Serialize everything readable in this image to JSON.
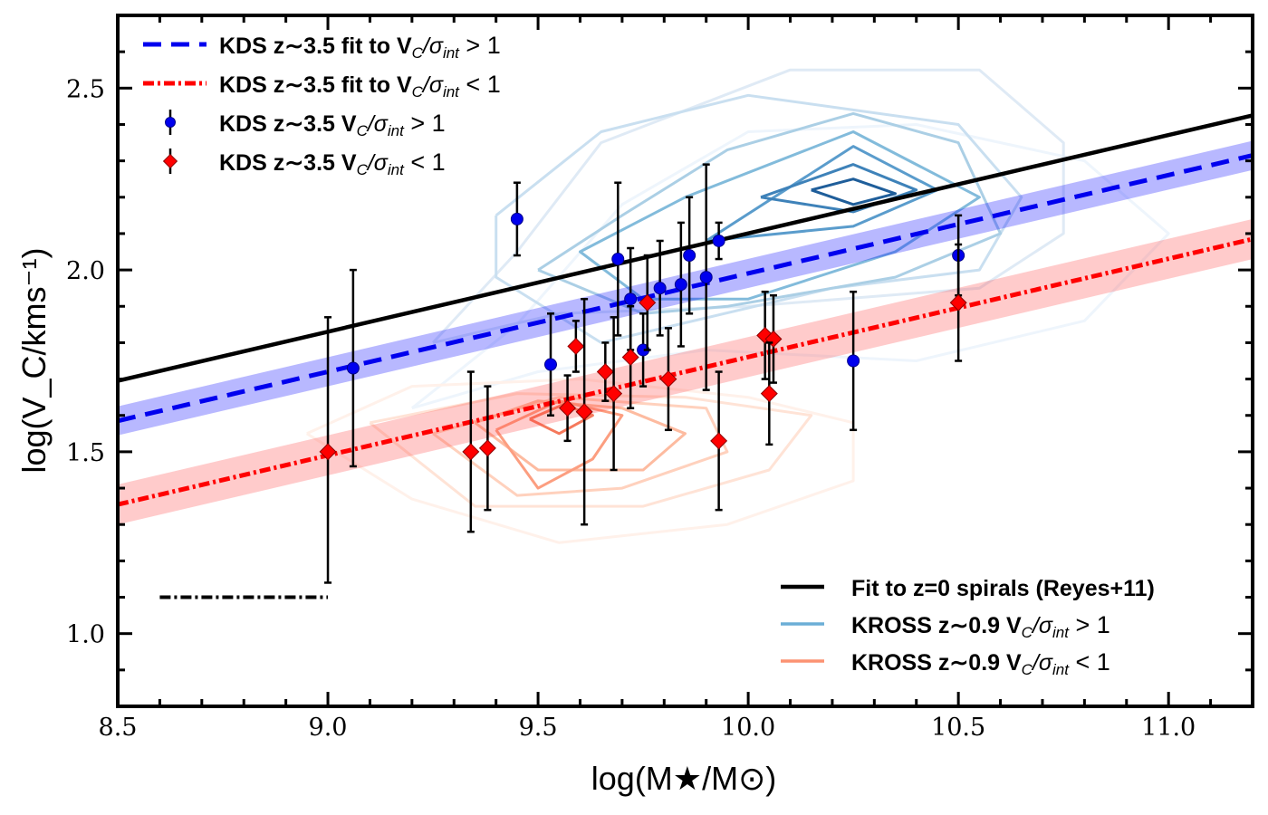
{
  "chart_data": {
    "type": "scatter",
    "xlabel": "log(M★/M⊙)",
    "ylabel": "log(V_C/kms⁻¹)",
    "xlim": [
      8.5,
      11.2
    ],
    "ylim": [
      0.8,
      2.7
    ],
    "x_ticks": [
      "8.5",
      "9.0",
      "9.5",
      "10.0",
      "10.5",
      "11.0"
    ],
    "y_ticks": [
      "1.0",
      "1.5",
      "2.0",
      "2.5"
    ],
    "series": [
      {
        "name": "KDS z~3.5 V_C/σ_int > 1",
        "legend_label": "KDS z∼3.5 V",
        "kind": "points",
        "marker": "circle",
        "color": "#0000ee",
        "points": [
          {
            "x": 9.06,
            "y": 1.73,
            "err": 0.27
          },
          {
            "x": 9.45,
            "y": 2.14,
            "err": 0.1
          },
          {
            "x": 9.53,
            "y": 1.74,
            "err": 0.14
          },
          {
            "x": 9.69,
            "y": 2.03,
            "err": 0.21
          },
          {
            "x": 9.72,
            "y": 1.92,
            "err": 0.14
          },
          {
            "x": 9.75,
            "y": 1.78,
            "err": 0.1
          },
          {
            "x": 9.79,
            "y": 1.95,
            "err": 0.13
          },
          {
            "x": 9.84,
            "y": 1.96,
            "err": 0.17
          },
          {
            "x": 9.86,
            "y": 2.04,
            "err": 0.16
          },
          {
            "x": 9.9,
            "y": 1.98,
            "err": 0.31
          },
          {
            "x": 9.93,
            "y": 2.08,
            "err": 0.05
          },
          {
            "x": 10.25,
            "y": 1.75,
            "err": 0.19
          },
          {
            "x": 10.5,
            "y": 2.04,
            "err": 0.11
          }
        ]
      },
      {
        "name": "KDS z~3.5 V_C/σ_int < 1",
        "legend_label": "KDS z∼3.5 V",
        "kind": "points",
        "marker": "diamond",
        "color": "#ff0000",
        "points": [
          {
            "x": 9.0,
            "y": 1.5,
            "err": 0.36,
            "err_up": 0.37
          },
          {
            "x": 9.34,
            "y": 1.5,
            "err": 0.22
          },
          {
            "x": 9.38,
            "y": 1.51,
            "err": 0.17
          },
          {
            "x": 9.57,
            "y": 1.62,
            "err": 0.09
          },
          {
            "x": 9.59,
            "y": 1.79,
            "err": 0.07
          },
          {
            "x": 9.61,
            "y": 1.61,
            "err": 0.31
          },
          {
            "x": 9.66,
            "y": 1.72,
            "err": 0.08
          },
          {
            "x": 9.68,
            "y": 1.66,
            "err": 0.21
          },
          {
            "x": 9.72,
            "y": 1.76,
            "err": 0.14
          },
          {
            "x": 9.76,
            "y": 1.91,
            "err": 0.13
          },
          {
            "x": 9.81,
            "y": 1.7,
            "err": 0.14
          },
          {
            "x": 9.93,
            "y": 1.53,
            "err": 0.19
          },
          {
            "x": 10.04,
            "y": 1.82,
            "err": 0.12
          },
          {
            "x": 10.06,
            "y": 1.81,
            "err": 0.12
          },
          {
            "x": 10.05,
            "y": 1.66,
            "err": 0.14
          },
          {
            "x": 10.5,
            "y": 1.91,
            "err": 0.16
          }
        ]
      },
      {
        "name": "KDS z~3.5 fit to V_C/σ_int > 1",
        "legend_label": "KDS z∼3.5 fit to V",
        "kind": "fit",
        "style": "dashed",
        "color": "#0000ee",
        "band_color": "#0000ff",
        "x": [
          8.5,
          11.2
        ],
        "y": [
          1.585,
          2.315
        ],
        "band_halfwidth": 0.04
      },
      {
        "name": "KDS z~3.5 fit to V_C/σ_int < 1",
        "legend_label": "KDS z∼3.5 fit to V",
        "kind": "fit",
        "style": "dashdot",
        "color": "#ff0000",
        "band_color": "#ff4444",
        "x": [
          8.5,
          11.2
        ],
        "y": [
          1.355,
          2.085
        ],
        "band_halfwidth": 0.055
      },
      {
        "name": "Fit to z=0 spirals (Reyes+11)",
        "legend_label": "Fit to z=0 spirals (Reyes+11)",
        "kind": "line",
        "style": "solid",
        "color": "#000000",
        "x": [
          8.5,
          11.2
        ],
        "y": [
          1.695,
          2.425
        ]
      },
      {
        "name": "KROSS z~0.9 V_C/σ_int > 1",
        "legend_label": "KROSS z∼0.9 V",
        "kind": "contours",
        "color": "#6baed6",
        "levels": [
          {
            "color": "#eef5fc",
            "points": [
              [
                9.2,
                1.62
              ],
              [
                9.45,
                1.85
              ],
              [
                9.7,
                2.18
              ],
              [
                10.0,
                2.38
              ],
              [
                10.4,
                2.4
              ],
              [
                10.8,
                2.3
              ],
              [
                11.0,
                2.1
              ],
              [
                10.8,
                1.86
              ],
              [
                10.4,
                1.75
              ],
              [
                9.9,
                1.78
              ],
              [
                9.5,
                1.72
              ],
              [
                9.2,
                1.62
              ]
            ]
          },
          {
            "color": "#dfeaf5",
            "points": [
              [
                9.25,
                1.8
              ],
              [
                9.45,
                2.05
              ],
              [
                9.65,
                2.35
              ],
              [
                10.1,
                2.55
              ],
              [
                10.55,
                2.55
              ],
              [
                10.75,
                2.35
              ],
              [
                10.75,
                2.1
              ],
              [
                10.55,
                1.95
              ],
              [
                10.0,
                1.9
              ],
              [
                9.55,
                1.88
              ],
              [
                9.25,
                1.8
              ]
            ]
          },
          {
            "color": "#c9dff0",
            "points": [
              [
                9.4,
                2.15
              ],
              [
                9.4,
                1.98
              ],
              [
                9.65,
                1.8
              ],
              [
                10.2,
                1.95
              ],
              [
                10.55,
                2.0
              ],
              [
                10.65,
                2.2
              ],
              [
                10.5,
                2.4
              ],
              [
                10.0,
                2.48
              ],
              [
                9.65,
                2.38
              ],
              [
                9.4,
                2.15
              ]
            ]
          },
          {
            "color": "#abcfe5",
            "points": [
              [
                9.5,
                2.0
              ],
              [
                9.7,
                2.15
              ],
              [
                9.95,
                2.33
              ],
              [
                10.25,
                2.43
              ],
              [
                10.5,
                2.35
              ],
              [
                10.6,
                2.1
              ],
              [
                10.35,
                1.98
              ],
              [
                9.95,
                1.9
              ],
              [
                9.75,
                1.88
              ],
              [
                9.5,
                2.0
              ]
            ]
          },
          {
            "color": "#82bbdb",
            "points": [
              [
                9.75,
                1.92
              ],
              [
                9.6,
                2.05
              ],
              [
                9.85,
                2.2
              ],
              [
                10.25,
                2.38
              ],
              [
                10.55,
                2.2
              ],
              [
                10.35,
                2.05
              ],
              [
                10.0,
                1.92
              ],
              [
                9.75,
                1.92
              ]
            ]
          },
          {
            "color": "#5a9ccc",
            "points": [
              [
                9.9,
                2.08
              ],
              [
                10.25,
                2.34
              ],
              [
                10.45,
                2.22
              ],
              [
                10.25,
                2.12
              ],
              [
                9.9,
                2.08
              ]
            ]
          },
          {
            "color": "#3e82b9",
            "points": [
              [
                10.03,
                2.2
              ],
              [
                10.25,
                2.29
              ],
              [
                10.4,
                2.22
              ],
              [
                10.25,
                2.16
              ],
              [
                10.03,
                2.2
              ]
            ]
          },
          {
            "color": "#1f5e9a",
            "points": [
              [
                10.15,
                2.22
              ],
              [
                10.25,
                2.25
              ],
              [
                10.35,
                2.21
              ],
              [
                10.25,
                2.18
              ],
              [
                10.15,
                2.22
              ]
            ]
          }
        ]
      },
      {
        "name": "KROSS z~0.9 V_C/σ_int < 1",
        "legend_label": "KROSS z∼0.9 V",
        "kind": "contours",
        "color": "#fc9272",
        "levels": [
          {
            "color": "#fff1ea",
            "points": [
              [
                8.95,
                1.55
              ],
              [
                9.2,
                1.37
              ],
              [
                9.55,
                1.25
              ],
              [
                9.95,
                1.3
              ],
              [
                10.25,
                1.42
              ],
              [
                10.25,
                1.58
              ],
              [
                10.0,
                1.65
              ],
              [
                9.6,
                1.7
              ],
              [
                9.2,
                1.68
              ],
              [
                8.95,
                1.55
              ]
            ]
          },
          {
            "color": "#ffe3d6",
            "points": [
              [
                9.1,
                1.58
              ],
              [
                9.35,
                1.35
              ],
              [
                9.75,
                1.35
              ],
              [
                10.05,
                1.45
              ],
              [
                10.15,
                1.6
              ],
              [
                9.85,
                1.65
              ],
              [
                9.45,
                1.66
              ],
              [
                9.1,
                1.58
              ]
            ]
          },
          {
            "color": "#ffd1bd",
            "points": [
              [
                9.25,
                1.55
              ],
              [
                9.45,
                1.38
              ],
              [
                9.7,
                1.4
              ],
              [
                9.95,
                1.5
              ],
              [
                9.9,
                1.62
              ],
              [
                9.55,
                1.65
              ],
              [
                9.25,
                1.55
              ]
            ]
          },
          {
            "color": "#fdbba0",
            "points": [
              [
                9.35,
                1.58
              ],
              [
                9.5,
                1.45
              ],
              [
                9.75,
                1.45
              ],
              [
                9.85,
                1.55
              ],
              [
                9.7,
                1.62
              ],
              [
                9.5,
                1.64
              ],
              [
                9.35,
                1.58
              ]
            ]
          },
          {
            "color": "#fc9e80",
            "points": [
              [
                9.4,
                1.56
              ],
              [
                9.5,
                1.4
              ],
              [
                9.63,
                1.48
              ],
              [
                9.7,
                1.6
              ],
              [
                9.55,
                1.64
              ],
              [
                9.4,
                1.56
              ]
            ]
          },
          {
            "color": "#f5795c",
            "points": [
              [
                9.48,
                1.59
              ],
              [
                9.55,
                1.55
              ],
              [
                9.63,
                1.6
              ],
              [
                9.56,
                1.63
              ],
              [
                9.48,
                1.59
              ]
            ]
          }
        ]
      }
    ],
    "extra_marks": [
      {
        "name": "dash-dot reference segment",
        "style": "dashdot",
        "color": "#000000",
        "x": [
          8.6,
          9.0
        ],
        "y": [
          1.1,
          1.1
        ]
      }
    ],
    "legend_upper_left": [
      {
        "ref": 2,
        "text": "KDS z∼3.5 fit to V",
        "sub": "C",
        "tail": "/σ",
        "tailsub": "int",
        "tail2": " > 1"
      },
      {
        "ref": 3,
        "text": "KDS z∼3.5 fit to V",
        "sub": "C",
        "tail": "/σ",
        "tailsub": "int",
        "tail2": " < 1"
      },
      {
        "ref": 0,
        "text": "KDS z∼3.5 V",
        "sub": "C",
        "tail": "/σ",
        "tailsub": "int",
        "tail2": " > 1"
      },
      {
        "ref": 1,
        "text": "KDS z∼3.5 V",
        "sub": "C",
        "tail": "/σ",
        "tailsub": "int",
        "tail2": " < 1"
      }
    ],
    "legend_lower_right": [
      {
        "ref": 4,
        "text": "Fit to z=0 spirals (Reyes+11)"
      },
      {
        "ref": 5,
        "text": "KROSS z∼0.9 V",
        "sub": "C",
        "tail": "/σ",
        "tailsub": "int",
        "tail2": " > 1"
      },
      {
        "ref": 6,
        "text": "KROSS z∼0.9 V",
        "sub": "C",
        "tail": "/σ",
        "tailsub": "int",
        "tail2": " < 1"
      }
    ]
  }
}
